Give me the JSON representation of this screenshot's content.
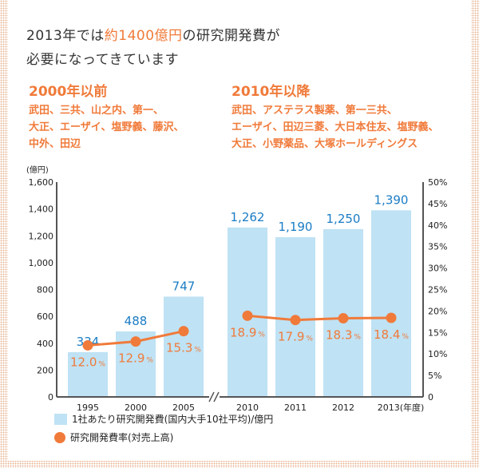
{
  "title": {
    "line1_a": "2013年では",
    "line1_hl": "約1400億円",
    "line1_b": "の研究開発費が",
    "line2": "必要になってきています"
  },
  "eras": [
    {
      "heading": "2000年以前",
      "companies": [
        "武田、三共、山之内、第一、",
        "大正、エーザイ、塩野義、藤沢、",
        "中外、田辺"
      ]
    },
    {
      "heading": "2010年以降",
      "companies": [
        "武田、アステラス製薬、第一三共、",
        "エーザイ、田辺三菱、大日本住友、塩野義、",
        "大正、小野薬品、大塚ホールディングス"
      ]
    }
  ],
  "legend": {
    "bar": "1社あたり研究開発費(国内大手10社平均)/億円",
    "line": "研究開発費率(対売上高)"
  },
  "colors": {
    "bar": "#bfe2f4",
    "bar_label": "#1a7cc4",
    "line": "#f07a3a",
    "axis": "#555555"
  },
  "chart_data": {
    "type": "bar+line",
    "categories": [
      "1995",
      "2000",
      "2005",
      "2010",
      "2011",
      "2012",
      "2013"
    ],
    "x_break_after": "2005",
    "xlabel_suffix": "(年度)",
    "ylabel": "(億円)",
    "ylim": [
      0,
      1600
    ],
    "yticks": [
      "0",
      "200",
      "400",
      "600",
      "800",
      "1,000",
      "1,200",
      "1,400",
      "1,600"
    ],
    "y2lim": [
      0,
      50
    ],
    "y2ticks": [
      "0",
      "5%",
      "10%",
      "15%",
      "20%",
      "25%",
      "30%",
      "35%",
      "40%",
      "45%",
      "50%"
    ],
    "series": [
      {
        "name": "1社あたり研究開発費(国内大手10社平均)/億円",
        "type": "bar",
        "axis": "left",
        "values": [
          334,
          488,
          747,
          1262,
          1190,
          1250,
          1390
        ],
        "labels": [
          "334",
          "488",
          "747",
          "1,262",
          "1,190",
          "1,250",
          "1,390"
        ]
      },
      {
        "name": "研究開発費率(対売上高)",
        "type": "line",
        "axis": "right",
        "unit": "%",
        "values": [
          12.0,
          12.9,
          15.3,
          18.9,
          17.9,
          18.3,
          18.4
        ],
        "labels": [
          "12.0",
          "12.9",
          "15.3",
          "18.9",
          "17.9",
          "18.3",
          "18.4"
        ]
      }
    ]
  }
}
